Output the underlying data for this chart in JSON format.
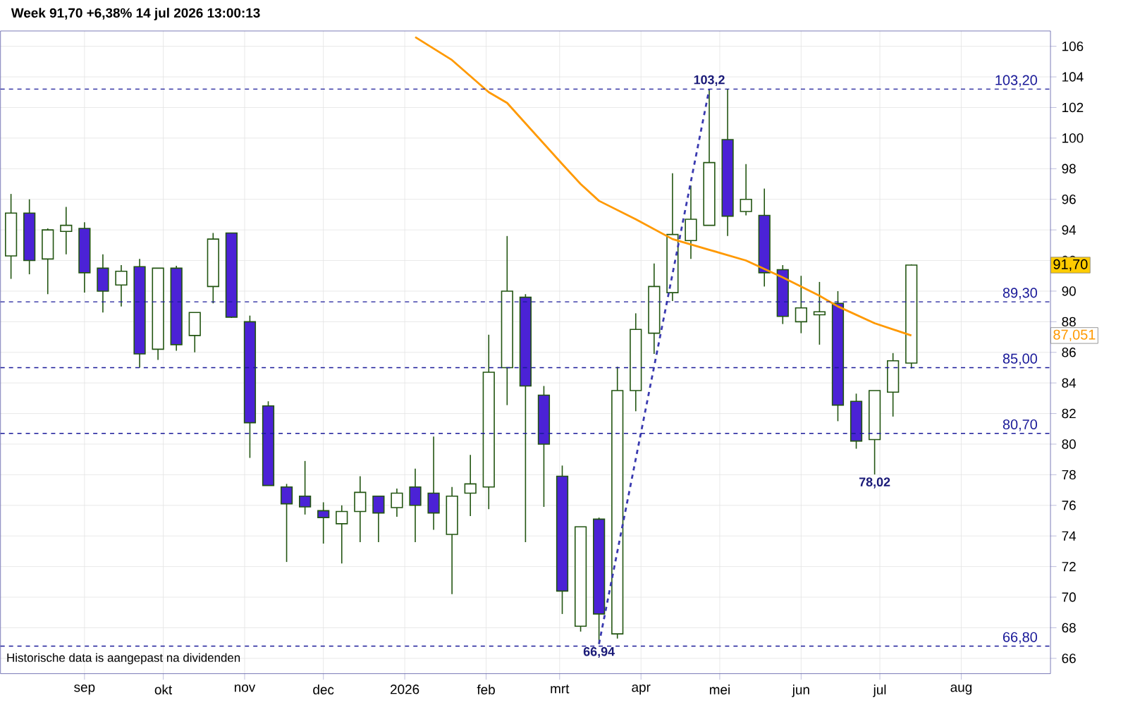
{
  "chart_data": {
    "type": "candlestick",
    "title": "Week 91,70 +6,38% 14 jul 2026 13:00:13",
    "x": [
      "2025-08-04",
      "2025-08-11",
      "2025-08-18",
      "2025-08-25",
      "2025-09-01",
      "2025-09-08",
      "2025-09-15",
      "2025-09-22",
      "2025-09-29",
      "2025-10-06",
      "2025-10-13",
      "2025-10-20",
      "2025-10-27",
      "2025-11-03",
      "2025-11-10",
      "2025-11-17",
      "2025-11-24",
      "2025-12-01",
      "2025-12-08",
      "2025-12-15",
      "2025-12-22",
      "2025-12-29",
      "2026-01-05",
      "2026-01-12",
      "2026-01-19",
      "2026-01-26",
      "2026-02-02",
      "2026-02-09",
      "2026-02-16",
      "2026-02-23",
      "2026-03-02",
      "2026-03-09",
      "2026-03-16",
      "2026-03-23",
      "2026-03-30",
      "2026-04-06",
      "2026-04-13",
      "2026-04-20",
      "2026-04-27",
      "2026-05-04",
      "2026-05-11",
      "2026-05-18",
      "2026-05-25",
      "2026-06-01",
      "2026-06-08",
      "2026-06-15",
      "2026-06-22",
      "2026-06-29",
      "2026-07-06",
      "2026-07-13"
    ],
    "ohlc": [
      [
        92.3,
        96.35,
        90.8,
        95.1
      ],
      [
        95.1,
        96.0,
        91.1,
        92.0
      ],
      [
        92.1,
        94.1,
        89.8,
        94.0
      ],
      [
        93.9,
        95.5,
        92.4,
        94.3
      ],
      [
        94.1,
        94.5,
        89.9,
        91.2
      ],
      [
        91.5,
        92.4,
        88.6,
        90.0
      ],
      [
        90.4,
        91.7,
        89.0,
        91.3
      ],
      [
        91.6,
        92.1,
        85.0,
        85.9
      ],
      [
        86.2,
        91.5,
        85.5,
        91.5
      ],
      [
        91.5,
        91.65,
        86.1,
        86.5
      ],
      [
        87.1,
        88.6,
        86.0,
        88.6
      ],
      [
        90.3,
        93.8,
        89.2,
        93.4
      ],
      [
        93.8,
        93.8,
        88.25,
        88.3
      ],
      [
        88.0,
        88.4,
        79.1,
        81.4
      ],
      [
        82.5,
        82.8,
        77.3,
        77.3
      ],
      [
        77.2,
        77.4,
        72.3,
        76.1
      ],
      [
        76.6,
        78.9,
        75.4,
        75.9
      ],
      [
        75.65,
        76.2,
        73.5,
        75.2
      ],
      [
        74.8,
        76.0,
        72.2,
        75.6
      ],
      [
        75.6,
        77.9,
        73.6,
        76.85
      ],
      [
        76.6,
        76.6,
        73.6,
        75.5
      ],
      [
        75.85,
        77.1,
        75.25,
        76.8
      ],
      [
        77.2,
        78.4,
        73.6,
        76.0
      ],
      [
        76.8,
        80.5,
        74.4,
        75.5
      ],
      [
        74.1,
        77.2,
        70.2,
        76.6
      ],
      [
        76.8,
        79.3,
        75.3,
        77.4
      ],
      [
        77.2,
        87.15,
        75.75,
        84.7
      ],
      [
        85.0,
        93.6,
        82.55,
        90.0
      ],
      [
        89.6,
        89.8,
        73.6,
        83.8
      ],
      [
        83.2,
        83.8,
        75.9,
        80.0
      ],
      [
        77.9,
        78.6,
        68.9,
        70.4
      ],
      [
        68.1,
        74.6,
        67.75,
        74.6
      ],
      [
        75.1,
        75.2,
        66.94,
        68.9
      ],
      [
        67.6,
        85.05,
        67.3,
        83.5
      ],
      [
        83.5,
        88.55,
        82.15,
        87.5
      ],
      [
        87.25,
        91.8,
        85.9,
        90.3
      ],
      [
        89.9,
        97.7,
        89.35,
        93.7
      ],
      [
        93.3,
        96.9,
        92.1,
        94.7
      ],
      [
        94.3,
        103.2,
        94.3,
        98.4
      ],
      [
        99.9,
        103.2,
        93.6,
        94.9
      ],
      [
        95.2,
        98.3,
        94.95,
        96.0
      ],
      [
        94.95,
        96.7,
        90.3,
        91.2
      ],
      [
        91.4,
        91.7,
        87.85,
        88.35
      ],
      [
        88.0,
        91.0,
        87.25,
        88.9
      ],
      [
        88.45,
        90.6,
        86.5,
        88.65
      ],
      [
        89.2,
        90.0,
        81.5,
        82.55
      ],
      [
        82.8,
        83.3,
        79.7,
        80.2
      ],
      [
        80.3,
        83.5,
        78.02,
        83.5
      ],
      [
        83.4,
        85.95,
        81.8,
        85.45
      ],
      [
        85.3,
        91.75,
        84.95,
        91.7
      ]
    ],
    "colors": [
      "#ffffff",
      "#4b22d6",
      "#ffffff",
      "#ffffff",
      "#4b22d6",
      "#4b22d6",
      "#ffffff",
      "#4b22d6",
      "#ffffff",
      "#4b22d6",
      "#ffffff",
      "#ffffff",
      "#4b22d6",
      "#4b22d6",
      "#4b22d6",
      "#4b22d6",
      "#4b22d6",
      "#4b22d6",
      "#ffffff",
      "#ffffff",
      "#4b22d6",
      "#ffffff",
      "#4b22d6",
      "#4b22d6",
      "#ffffff",
      "#ffffff",
      "#ffffff",
      "#ffffff",
      "#4b22d6",
      "#4b22d6",
      "#4b22d6",
      "#ffffff",
      "#4b22d6",
      "#ffffff",
      "#ffffff",
      "#ffffff",
      "#ffffff",
      "#ffffff",
      "#ffffff",
      "#4b22d6",
      "#ffffff",
      "#4b22d6",
      "#4b22d6",
      "#ffffff",
      "#ffffff",
      "#4b22d6",
      "#4b22d6",
      "#ffffff",
      "#ffffff",
      "#ffffff"
    ],
    "series": [
      {
        "type": "line",
        "color": "#ff9900",
        "x": [
          "2026-01-05",
          "2026-01-19",
          "2026-02-02",
          "2026-02-09",
          "2026-03-02",
          "2026-03-09",
          "2026-03-16",
          "2026-03-30",
          "2026-04-13",
          "2026-04-27",
          "2026-05-11",
          "2026-05-25",
          "2026-06-08",
          "2026-06-15",
          "2026-06-29",
          "2026-07-13"
        ],
        "values": [
          106.6,
          105.1,
          103.0,
          102.3,
          98.3,
          97.0,
          95.9,
          94.7,
          93.4,
          92.7,
          92.0,
          90.9,
          89.7,
          89.0,
          87.9,
          87.1
        ]
      },
      {
        "type": "line",
        "color": "#3a3ab0",
        "line_style": "dashed",
        "x": [
          "2026-03-16",
          "2026-04-27"
        ],
        "values": [
          66.94,
          103.2
        ]
      }
    ],
    "xlim": [
      "2025-07-31",
      "2026-09-04"
    ],
    "xticks": [
      {
        "value": "2025-09-01",
        "label": "sep"
      },
      {
        "value": "2025-10-01",
        "label": "okt"
      },
      {
        "value": "2025-11-01",
        "label": "nov"
      },
      {
        "value": "2025-12-01",
        "label": "dec"
      },
      {
        "value": "2026-01-01",
        "label": "2026"
      },
      {
        "value": "2026-02-01",
        "label": "feb"
      },
      {
        "value": "2026-03-01",
        "label": "mrt"
      },
      {
        "value": "2026-04-01",
        "label": "apr"
      },
      {
        "value": "2026-05-01",
        "label": "mei"
      },
      {
        "value": "2026-06-01",
        "label": "jun"
      },
      {
        "value": "2026-07-01",
        "label": "jul"
      },
      {
        "value": "2026-08-01",
        "label": "aug"
      }
    ],
    "ylim": [
      65,
      107
    ],
    "yticks": [
      66,
      68,
      70,
      72,
      74,
      76,
      78,
      80,
      82,
      84,
      86,
      88,
      90,
      92,
      94,
      96,
      98,
      100,
      102,
      104,
      106
    ],
    "grid": true,
    "ref_lines": [
      {
        "axis": "y",
        "value": 103.2,
        "label": "103,20",
        "color": "#1a1a99",
        "line_style": "dashed"
      },
      {
        "axis": "y",
        "value": 89.3,
        "label": "89,30",
        "color": "#1a1a99",
        "line_style": "dashed"
      },
      {
        "axis": "y",
        "value": 85.0,
        "label": "85,00",
        "color": "#1a1a99",
        "line_style": "dashed"
      },
      {
        "axis": "y",
        "value": 80.7,
        "label": "80,70",
        "color": "#1a1a99",
        "line_style": "dashed"
      },
      {
        "axis": "y",
        "value": 66.8,
        "label": "66,80",
        "color": "#1a1a99",
        "line_style": "dashed"
      }
    ],
    "annotations": [
      {
        "text": "103,2",
        "x": "2026-04-27",
        "y": 103.2
      },
      {
        "text": "66,94",
        "x": "2026-03-16",
        "y": 66.94
      },
      {
        "text": "78,02",
        "x": "2026-06-29",
        "y": 78.02
      },
      "91,70",
      "87,051",
      "Historische data is aangepast na dividenden"
    ]
  }
}
